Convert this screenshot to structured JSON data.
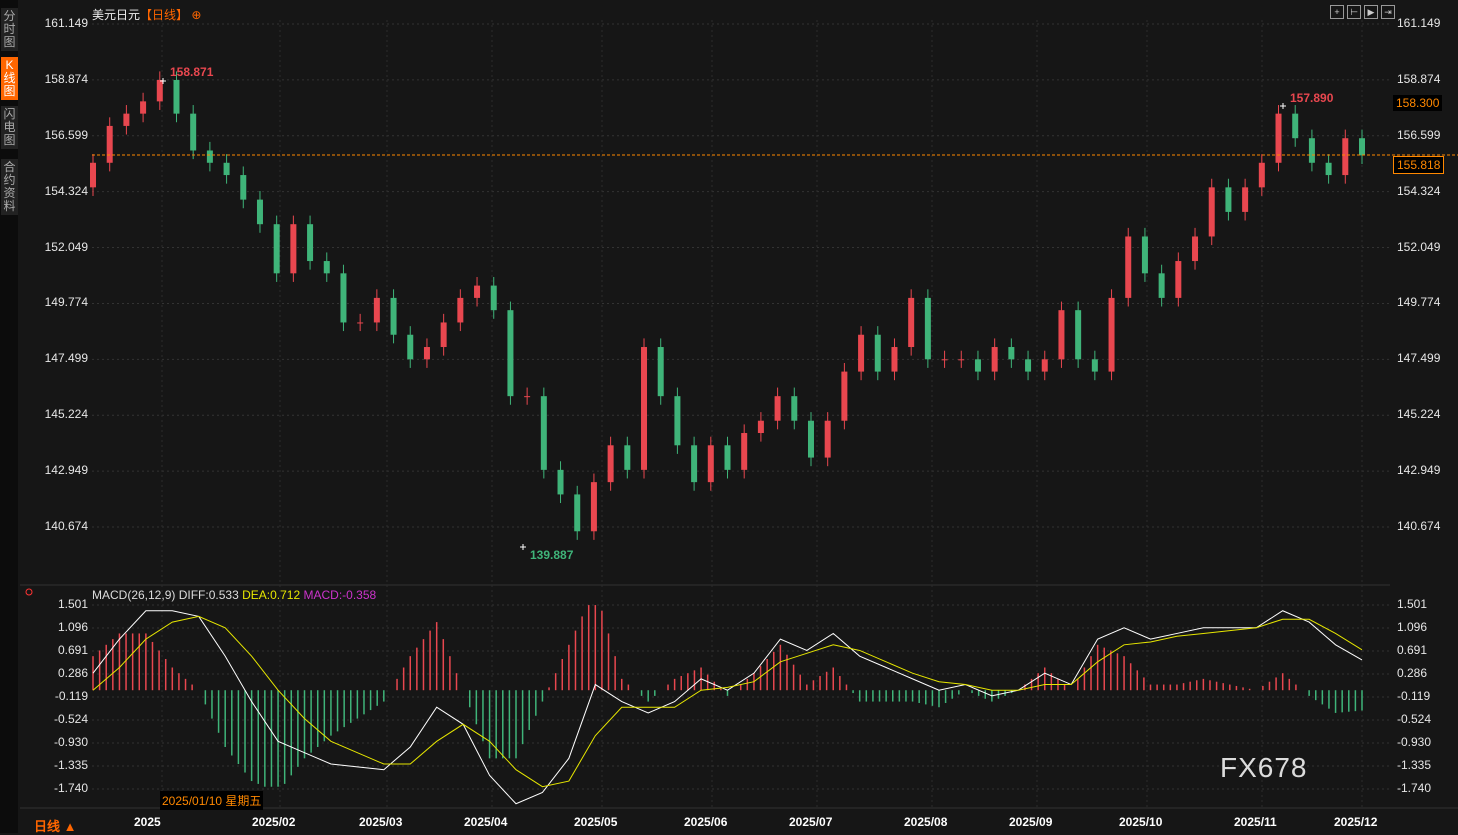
{
  "side_tabs": [
    "分时图",
    "K线图",
    "闪电图",
    "合约资料"
  ],
  "title": {
    "symbol": "美元日元",
    "period": "【日线】",
    "icon": "crosshair-circle-icon"
  },
  "tools": [
    "crosshair-icon",
    "range-icon",
    "play-icon",
    "end-icon"
  ],
  "colors": {
    "up": "#e8474f",
    "down": "#3fb479",
    "diff": "#ffffff",
    "dea": "#e6e600",
    "macd": "#cc33cc",
    "accent": "#ff6600"
  },
  "chart_data": [
    {
      "type": "candlestick",
      "yticks": [
        "161.149",
        "158.874",
        "156.599",
        "154.324",
        "152.049",
        "149.774",
        "147.499",
        "145.224",
        "142.949",
        "140.674"
      ],
      "ylim": [
        140.674,
        161.149
      ],
      "annotations": {
        "high": "158.871",
        "low": "139.887",
        "recent_high": "157.890"
      },
      "price_boxes": {
        "upper": "158.300",
        "current": "155.818"
      },
      "current_price": 155.818,
      "closes": [
        155.5,
        157,
        157.5,
        158,
        158.87,
        157.5,
        156,
        155.5,
        155,
        154,
        153,
        151,
        153,
        151.5,
        151,
        149,
        149,
        150,
        148.5,
        147.5,
        148,
        149,
        150,
        150.5,
        149.5,
        146,
        146,
        143,
        142,
        140.5,
        142.5,
        144,
        143,
        148,
        146,
        144,
        142.5,
        144,
        143,
        144.5,
        145,
        146,
        145,
        143.5,
        145,
        147,
        148.5,
        147,
        148,
        150,
        147.5,
        147.5,
        147.5,
        147,
        148,
        147.5,
        147,
        147.5,
        149.5,
        147.5,
        147,
        150,
        152.5,
        151,
        150,
        151.5,
        152.5,
        154.5,
        153.5,
        154.5,
        155.5,
        157.5,
        156.5,
        155.5,
        155,
        156.5,
        155.8
      ],
      "xticks": [
        "2025",
        "2025/02",
        "2025/03",
        "2025/04",
        "2025/05",
        "2025/06",
        "2025/07",
        "2025/08",
        "2025/09",
        "2025/10",
        "2025/11",
        "2025/12"
      ]
    },
    {
      "type": "macd",
      "label": "MACD(26,12,9)",
      "diff_label": "DIFF:0.533",
      "dea_label": "DEA:0.712",
      "macd_label": "MACD:-0.358",
      "yticks": [
        "1.501",
        "1.096",
        "0.691",
        "0.286",
        "-0.119",
        "-0.524",
        "-0.930",
        "-1.335",
        "-1.740"
      ],
      "ylim": [
        -1.74,
        1.501
      ],
      "diff": [
        0.3,
        0.9,
        1.4,
        1.4,
        1.3,
        0.6,
        -0.2,
        -0.9,
        -1.1,
        -1.3,
        -1.35,
        -1.4,
        -1.0,
        -0.3,
        -0.6,
        -1.5,
        -2.0,
        -1.8,
        -1.2,
        0.1,
        -0.2,
        -0.4,
        -0.2,
        0.2,
        0.0,
        0.3,
        0.9,
        0.7,
        1.0,
        0.6,
        0.4,
        0.2,
        0.0,
        0.1,
        -0.1,
        0.0,
        0.3,
        0.1,
        0.9,
        1.1,
        0.9,
        1.0,
        1.1,
        1.1,
        1.1,
        1.4,
        1.2,
        0.8,
        0.533
      ],
      "dea": [
        0,
        0.4,
        0.9,
        1.2,
        1.3,
        1.1,
        0.6,
        0.0,
        -0.5,
        -0.9,
        -1.1,
        -1.3,
        -1.3,
        -0.9,
        -0.6,
        -0.9,
        -1.4,
        -1.7,
        -1.6,
        -0.8,
        -0.3,
        -0.3,
        -0.3,
        0,
        0.05,
        0.15,
        0.5,
        0.65,
        0.8,
        0.7,
        0.5,
        0.3,
        0.15,
        0.1,
        0,
        0,
        0.1,
        0.1,
        0.5,
        0.8,
        0.85,
        0.95,
        1.0,
        1.05,
        1.1,
        1.25,
        1.25,
        1.0,
        0.712
      ]
    }
  ],
  "tooltip": "2025/01/10 星期五",
  "range_label": "日线 ▲",
  "watermark": "FX678"
}
